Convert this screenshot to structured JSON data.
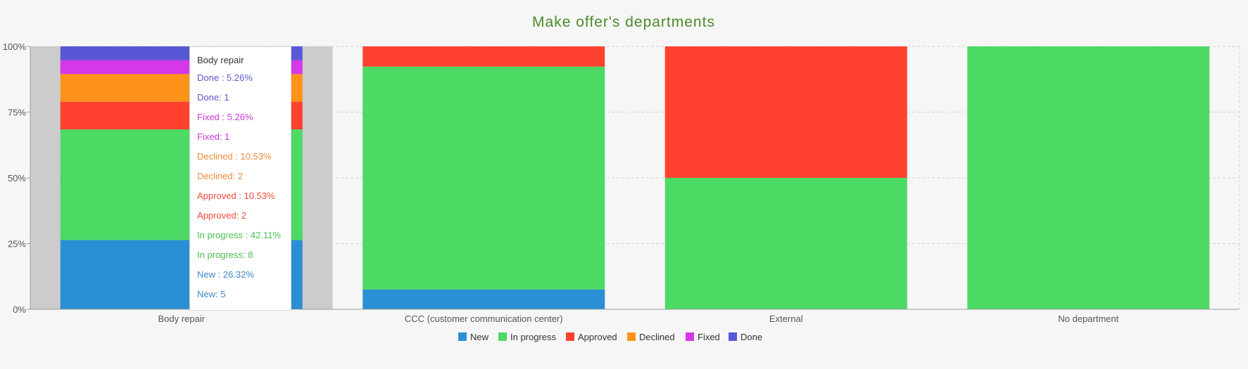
{
  "colors": {
    "background": "#f6f6f6",
    "title": "#4a8a2a",
    "highlight": "#cccccc",
    "grid": "#d4d4d4",
    "axis": "#999999",
    "tick_text": "#555555",
    "series": {
      "New": "#2a8fd4",
      "In progress": "#4cd964",
      "Approved": "#ff4130",
      "Declined": "#ff9218",
      "Fixed": "#d637e8",
      "Done": "#5858d6"
    },
    "tooltip_text": {
      "Done": "#5a5acc",
      "Fixed": "#c839d8",
      "Declined": "#ee8a3c",
      "Approved": "#ee4a3c",
      "In progress": "#4cbf52",
      "New": "#3e86c8"
    }
  },
  "chart_data": {
    "type": "bar",
    "stacked": true,
    "normalized": true,
    "title": "Make offer's departments",
    "categories": [
      "Body repair",
      "CCC (customer communication center)",
      "External",
      "No department"
    ],
    "y_ticks": [
      "0%",
      "25%",
      "50%",
      "75%",
      "100%"
    ],
    "ylim": [
      0,
      100
    ],
    "grid": true,
    "legend_position": "bottom-center",
    "series": [
      {
        "name": "New",
        "values": [
          26.32,
          7.5,
          0,
          0
        ]
      },
      {
        "name": "In progress",
        "values": [
          42.11,
          84.8,
          50,
          100
        ]
      },
      {
        "name": "Approved",
        "values": [
          10.53,
          7.7,
          50,
          0
        ]
      },
      {
        "name": "Declined",
        "values": [
          10.53,
          0,
          0,
          0
        ]
      },
      {
        "name": "Fixed",
        "values": [
          5.26,
          0,
          0,
          0
        ]
      },
      {
        "name": "Done",
        "values": [
          5.26,
          0,
          0,
          0
        ]
      }
    ],
    "highlighted_category": "Body repair"
  },
  "legend": {
    "items": [
      "New",
      "In progress",
      "Approved",
      "Declined",
      "Fixed",
      "Done"
    ]
  },
  "tooltip": {
    "title": "Body repair",
    "lines": [
      {
        "series": "Done",
        "text": "Done : 5.26%"
      },
      {
        "series": "Done",
        "text": "Done: 1"
      },
      {
        "series": "Fixed",
        "text": "Fixed : 5.26%"
      },
      {
        "series": "Fixed",
        "text": "Fixed: 1"
      },
      {
        "series": "Declined",
        "text": "Declined : 10.53%"
      },
      {
        "series": "Declined",
        "text": "Declined: 2"
      },
      {
        "series": "Approved",
        "text": "Approved : 10.53%"
      },
      {
        "series": "Approved",
        "text": "Approved: 2"
      },
      {
        "series": "In progress",
        "text": "In progress : 42.11%"
      },
      {
        "series": "In progress",
        "text": "In progress: 8"
      },
      {
        "series": "New",
        "text": "New : 26.32%"
      },
      {
        "series": "New",
        "text": "New: 5"
      }
    ]
  }
}
